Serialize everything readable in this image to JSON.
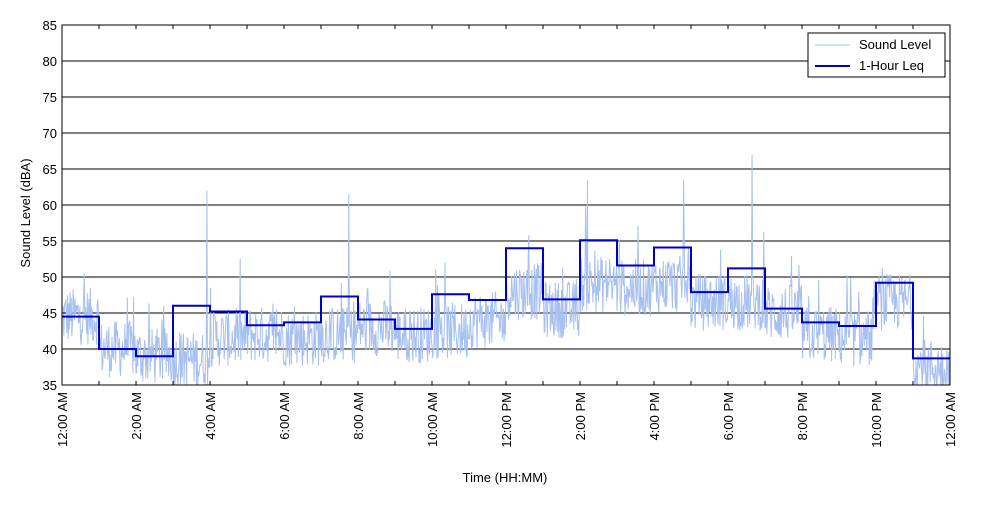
{
  "chart_data": {
    "type": "line",
    "title": "",
    "xlabel": "Time (HH:MM)",
    "ylabel": "Sound Level (dBA)",
    "ylim": [
      35,
      85
    ],
    "y_ticks": [
      35,
      40,
      45,
      50,
      55,
      60,
      65,
      70,
      75,
      80,
      85
    ],
    "x_range_hours": [
      0,
      24
    ],
    "x_ticks": [
      {
        "hour": 0,
        "label": "12:00 AM"
      },
      {
        "hour": 2,
        "label": "2:00 AM"
      },
      {
        "hour": 4,
        "label": "4:00 AM"
      },
      {
        "hour": 6,
        "label": "6:00 AM"
      },
      {
        "hour": 8,
        "label": "8:00 AM"
      },
      {
        "hour": 10,
        "label": "10:00 AM"
      },
      {
        "hour": 12,
        "label": "12:00 PM"
      },
      {
        "hour": 14,
        "label": "2:00 PM"
      },
      {
        "hour": 16,
        "label": "4:00 PM"
      },
      {
        "hour": 18,
        "label": "6:00 PM"
      },
      {
        "hour": 20,
        "label": "8:00 PM"
      },
      {
        "hour": 22,
        "label": "10:00 PM"
      },
      {
        "hour": 24,
        "label": "12:00 AM"
      }
    ],
    "grid": "horizontal",
    "legend_position": "top-right",
    "colors": {
      "sound_level": "#a7c0f0",
      "leq": "#0000cc"
    },
    "series": [
      {
        "name": "Sound Level",
        "style": "thin-line",
        "hour_means": [
          44.5,
          40,
          39,
          38.5,
          41.5,
          42,
          41.5,
          42,
          43,
          42,
          42.5,
          44,
          48,
          45.5,
          49,
          48.5,
          49,
          46.5,
          46.5,
          45,
          42,
          41.5,
          46.5,
          37.5
        ],
        "peaks": [
          {
            "hour": 3.92,
            "value": 62
          },
          {
            "hour": 7.75,
            "value": 61.5
          },
          {
            "hour": 14.2,
            "value": 63.5
          },
          {
            "hour": 16.8,
            "value": 63.5
          },
          {
            "hour": 18.65,
            "value": 67
          }
        ]
      },
      {
        "name": "1-Hour Leq",
        "style": "step",
        "values": [
          44.5,
          40,
          39,
          46,
          45.2,
          43.3,
          43.7,
          47.3,
          44.1,
          42.8,
          47.6,
          46.8,
          54,
          46.9,
          55.1,
          51.6,
          54.1,
          47.9,
          51.2,
          45.6,
          43.7,
          43.2,
          49.2,
          38.7
        ]
      }
    ]
  }
}
